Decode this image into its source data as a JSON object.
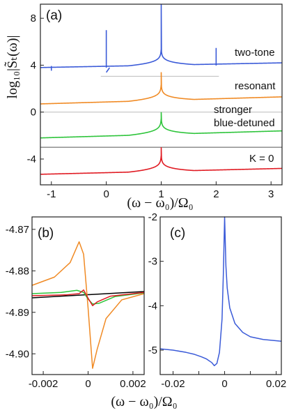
{
  "chart_data": [
    {
      "panel": "(a)",
      "type": "line",
      "xlabel": "(ω − ω₀)/Ω₀",
      "ylabel": "log₁₀|S̃ₜ(ω)|",
      "xlim": [
        -1.2,
        3.2
      ],
      "ylim": [
        -6.2,
        9.2
      ],
      "xticks": [
        "-1",
        "0",
        "1",
        "2",
        "3"
      ],
      "yticks": [
        "-4",
        "0",
        "4",
        "8"
      ],
      "annotations": [
        "two-tone",
        "resonant",
        "stronger",
        "blue-detuned",
        "K = 0"
      ],
      "series": [
        {
          "color": "#3a5ad8",
          "baseline": 3.0,
          "floor_left": 3.8,
          "floor_right": 4.2,
          "peak_at": 1,
          "peak_max": 9.2,
          "sidebands": [
            {
              "x": -1,
              "height": 0.4
            },
            {
              "x": 0,
              "height": 3.2
            },
            {
              "x": 2,
              "height": 1.5
            }
          ]
        },
        {
          "color": "#f08a24",
          "floor_left": 0.7,
          "floor_right": 1.3,
          "peak_at": 1,
          "peak_max": 3.4
        },
        {
          "color": "#2dc43a",
          "floor_left": -2.2,
          "floor_right": -1.6,
          "peak_at": 1,
          "peak_max": 0.0
        },
        {
          "color": "#e01a22",
          "floor_left": -5.3,
          "floor_right": -4.8,
          "peak_at": 1,
          "peak_max": -3.0
        }
      ],
      "reference_lines": [
        3.05,
        0.0,
        -3.0
      ]
    },
    {
      "panel": "(b)",
      "type": "line",
      "xlabel": "(ω − ω₀)/Ω₀",
      "xlim": [
        -0.0025,
        0.0025
      ],
      "ylim": [
        -4.905,
        -4.867
      ],
      "xticks": [
        "-0.002",
        "0",
        "0.002"
      ],
      "yticks": [
        "-4.87",
        "-4.88",
        "-4.89",
        "-4.90"
      ],
      "series": [
        {
          "color": "#000000",
          "x": [
            -0.0025,
            0.0025
          ],
          "y": [
            -4.8865,
            -4.885
          ]
        },
        {
          "color": "#f08a24",
          "x": [
            -0.0025,
            -0.0015,
            -0.0008,
            -0.0004,
            -0.0002,
            0,
            0.0002,
            0.0004,
            0.0008,
            0.0015,
            0.0025
          ],
          "y": [
            -4.8835,
            -4.8815,
            -4.878,
            -4.873,
            -4.876,
            -4.889,
            -4.9035,
            -4.899,
            -4.8915,
            -4.887,
            -4.8855
          ]
        },
        {
          "color": "#2dc43a",
          "x": [
            -0.0025,
            -0.0012,
            -0.0005,
            -0.0002,
            0,
            0.0002,
            0.0005,
            0.0012,
            0.0025
          ],
          "y": [
            -4.8855,
            -4.8852,
            -4.8847,
            -4.8852,
            -4.8868,
            -4.888,
            -4.8878,
            -4.8862,
            -4.8853
          ]
        },
        {
          "color": "#e01a22",
          "x": [
            -0.0025,
            -0.001,
            -0.0004,
            -0.0002,
            0,
            0.0002,
            0.0004,
            0.001,
            0.0025
          ],
          "y": [
            -4.886,
            -4.8858,
            -4.8855,
            -4.8846,
            -4.8866,
            -4.8884,
            -4.8875,
            -4.8861,
            -4.8852
          ]
        }
      ]
    },
    {
      "panel": "(c)",
      "type": "line",
      "xlabel": "(ω − ω₀)/Ω₀",
      "xlim": [
        -0.025,
        0.022
      ],
      "ylim": [
        -5.55,
        -2.0
      ],
      "xticks": [
        "-0.02",
        "-0.01",
        "0",
        "0.01",
        "0.02"
      ],
      "yticks": [
        "-2",
        "-3",
        "-4",
        "-5"
      ],
      "series": [
        {
          "color": "#3a5ad8",
          "x": [
            -0.025,
            -0.02,
            -0.015,
            -0.012,
            -0.009,
            -0.007,
            -0.005,
            -0.004,
            -0.003,
            -0.002,
            -0.001,
            -0.0005,
            0,
            0.0005,
            0.001,
            0.002,
            0.004,
            0.007,
            0.01,
            0.015,
            0.022
          ],
          "y": [
            -4.97,
            -5.0,
            -5.05,
            -5.09,
            -5.15,
            -5.2,
            -5.28,
            -5.35,
            -5.3,
            -5.05,
            -4.3,
            -3.3,
            -2.0,
            -3.1,
            -3.6,
            -4.05,
            -4.4,
            -4.6,
            -4.7,
            -4.76,
            -4.8
          ]
        }
      ]
    }
  ]
}
